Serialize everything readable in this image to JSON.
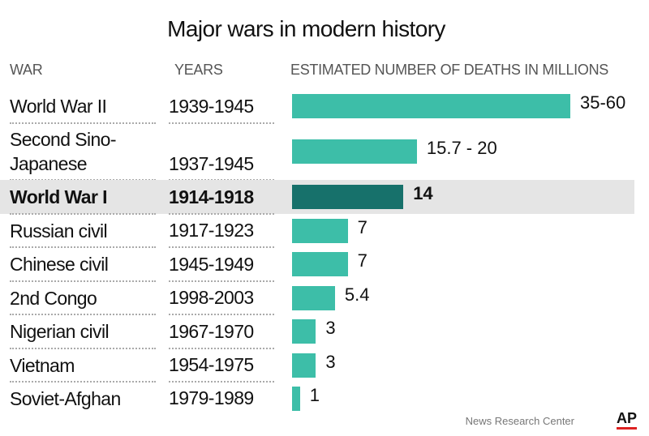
{
  "chart_data": {
    "type": "bar",
    "orientation": "horizontal",
    "title": "Major wars in modern history",
    "column_headers": [
      "WAR",
      "YEARS",
      "ESTIMATED NUMBER OF DEATHS IN MILLIONS"
    ],
    "categories": [
      "World War II",
      "Second Sino-Japanese",
      "World War I",
      "Russian civil",
      "Chinese civil",
      "2nd Congo",
      "Nigerian civil",
      "Vietnam",
      "Soviet-Afghan"
    ],
    "years": [
      "1939-1945",
      "1937-1945",
      "1914-1918",
      "1917-1923",
      "1945-1949",
      "1998-2003",
      "1967-1970",
      "1954-1975",
      "1979-1989"
    ],
    "values": [
      35,
      15.7,
      14,
      7,
      7,
      5.4,
      3,
      3,
      1
    ],
    "value_labels": [
      "35-60",
      "15.7 - 20",
      "14",
      "7",
      "7",
      "5.4",
      "3",
      "3",
      "1"
    ],
    "color": "#3dbea8",
    "highlight_category": "World War I",
    "highlight_color": "#17716b",
    "source": "News Research Center",
    "logo": "AP"
  }
}
